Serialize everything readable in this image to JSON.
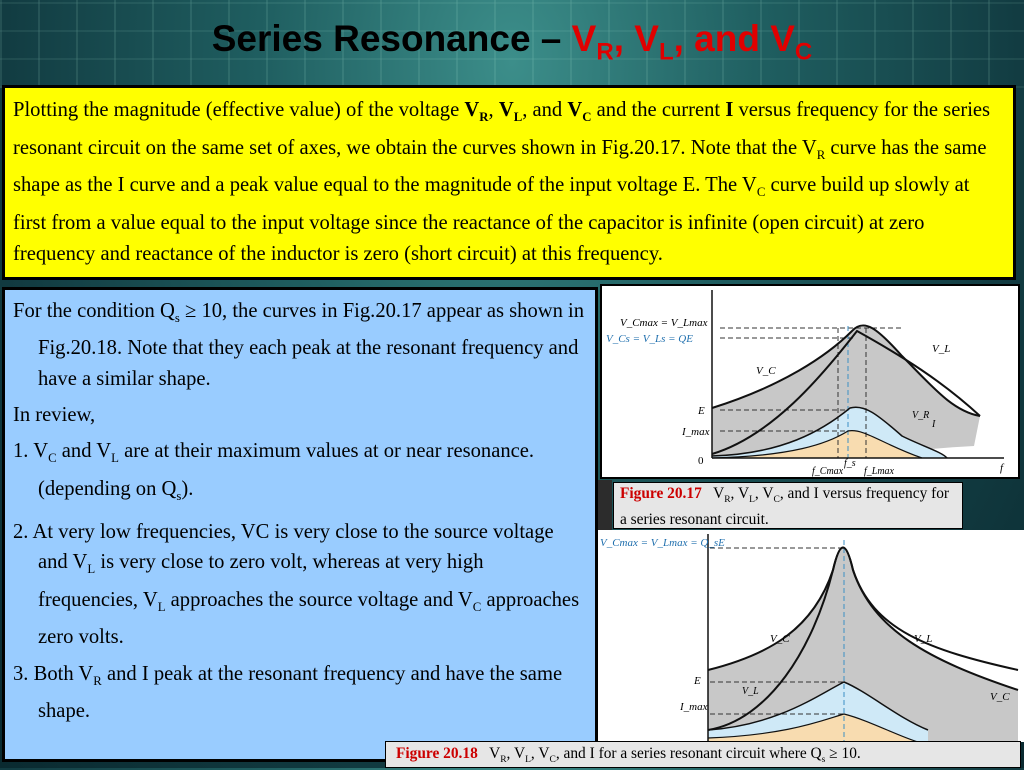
{
  "title": {
    "main": "Series Resonance – ",
    "vr": "V",
    "r": "R",
    "sep1": ", ",
    "vl": "V",
    "l": "L",
    "sep2": ", and ",
    "vc": "V",
    "c": "C"
  },
  "top_box": {
    "t1": "Plotting the magnitude (effective value) of the voltage ",
    "vr_b": "V",
    "vr_s": "R",
    "c1": ", ",
    "vl_b": "V",
    "vl_s": "L",
    "c2": ", and ",
    "vc_b": "V",
    "vc_s": "C",
    "t2": " and the current ",
    "i_b": "I",
    "t3": " versus frequency for the series resonant circuit on the same set of axes, we obtain the curves shown in Fig.20.17. Note that the V",
    "vr2_s": "R",
    "t4": " curve has the same shape as the I curve and a peak value equal to the magnitude of the input voltage E. The V",
    "vc2_s": "C",
    "t5": " curve build up slowly at first from a value equal to the input voltage since the reactance of the capacitor is infinite (open circuit) at zero frequency and reactance of the inductor is zero (short circuit) at this frequency."
  },
  "left_box": {
    "p1a": "For the condition Q",
    "p1s": "s",
    "p1b": " ≥ 10, the curves in Fig.20.17 appear as shown in Fig.20.18. Note that they each peak at the resonant frequency and have a similar shape.",
    "p2": "In review,",
    "i1a": "1. V",
    "i1s1": "C",
    "i1b": " and V",
    "i1s2": "L",
    "i1c": " are at their maximum values at or near resonance. (depending on Q",
    "i1s3": "s",
    "i1d": ").",
    "i2a": "2. At very low frequencies, VC is very close to the source voltage and V",
    "i2s1": "L",
    "i2b": " is very close to zero volt, whereas at very high frequencies, V",
    "i2s2": "L",
    "i2c": " approaches the source voltage and V",
    "i2s3": "C",
    "i2d": " approaches zero volts.",
    "i3a": "3. Both V",
    "i3s": "R",
    "i3b": " and I peak at the resonant frequency and have the same shape."
  },
  "fig1": {
    "caption_label": "Figure 20.17",
    "caption_a": "V",
    "s1": "R",
    "caption_b": ", V",
    "s2": "L",
    "caption_c": ", V",
    "s3": "C",
    "caption_d": ", and I versus frequency for a series resonant circuit.",
    "labels": {
      "vcmax_eq_vlmax": "V_Cmax = V_Lmax",
      "vcs_eq_vls": "V_Cs = V_Ls = QE",
      "vl": "V_L",
      "vc": "V_C",
      "vr": "V_R",
      "i": "I",
      "e": "E",
      "imax": "I_max",
      "zero": "0",
      "f": "f",
      "fcmax": "f_Cmax",
      "fs": "f_s",
      "flmax": "f_Lmax"
    }
  },
  "fig2": {
    "caption_label": "Figure 20.18",
    "caption_a": "V",
    "s1": "R",
    "caption_b": ", V",
    "s2": "L",
    "caption_c": ", V",
    "s3": "C",
    "caption_d": ", and I for a series resonant circuit where Q",
    "s4": "s",
    "caption_e": " ≥ 10.",
    "labels": {
      "top": "V_Cmax = V_Lmax = Q_sE",
      "vc": "V_C",
      "vl": "V_L",
      "e": "E",
      "imax": "I_max"
    }
  },
  "colors": {
    "title_accent": "#e00000",
    "top_box_bg": "#ffff00",
    "left_box_bg": "#99ccff",
    "caption_label": "#cc0000",
    "grey_fill": "#c0c0c0",
    "blue_fill": "#cfe9f7",
    "orange_fill": "#f8dcb0"
  }
}
